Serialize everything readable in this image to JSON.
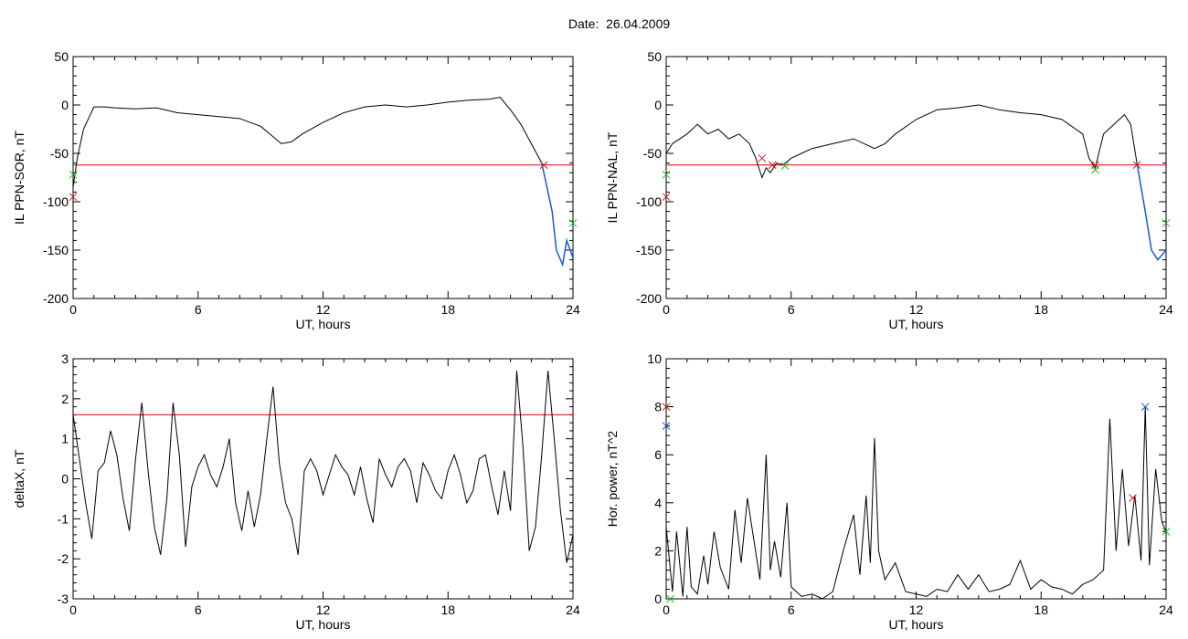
{
  "header": {
    "date_label": "Date:",
    "date_value": "26.04.2009"
  },
  "colors": {
    "trace": "#000000",
    "threshold": "#e00000",
    "active": "#1a5fd0",
    "marker_green": "#22bb22",
    "marker_red": "#d02020",
    "marker_blue": "#1a5fd0"
  },
  "chart_data": [
    {
      "id": "il-ppn-sor",
      "type": "line",
      "title": "",
      "xlabel": "UT, hours",
      "ylabel": "IL PPN-SOR, nT",
      "xlim": [
        0,
        24
      ],
      "ylim": [
        -200,
        50
      ],
      "xticks": [
        0,
        6,
        12,
        18,
        24
      ],
      "yticks": [
        50,
        0,
        -50,
        -100,
        -150,
        -200
      ],
      "threshold": -62,
      "series": [
        {
          "values_x": [
            0,
            0.2,
            0.5,
            1,
            1.5,
            2,
            3,
            4,
            5,
            6,
            7,
            8,
            9,
            10,
            10.5,
            11,
            12,
            13,
            14,
            15,
            16,
            17,
            18,
            19,
            20,
            20.5,
            21,
            21.5,
            22,
            22.5,
            22.8,
            23,
            23.2,
            23.5,
            23.7,
            24
          ],
          "values_y": [
            -85,
            -55,
            -25,
            -2,
            -2,
            -3,
            -4,
            -3,
            -8,
            -10,
            -12,
            -14,
            -22,
            -40,
            -38,
            -30,
            -18,
            -8,
            -2,
            0,
            -2,
            0,
            3,
            5,
            6,
            8,
            -5,
            -20,
            -40,
            -60,
            -90,
            -110,
            -150,
            -165,
            -140,
            -158
          ],
          "active_from": 22.5
        }
      ],
      "markers": [
        {
          "x": 0,
          "y": -72,
          "color": "green",
          "symbol": "x"
        },
        {
          "x": 0,
          "y": -95,
          "color": "red",
          "symbol": "x"
        },
        {
          "x": 22.6,
          "y": -62,
          "color": "red",
          "symbol": "x"
        },
        {
          "x": 24,
          "y": -122,
          "color": "green",
          "symbol": "x"
        }
      ]
    },
    {
      "id": "il-ppn-nal",
      "type": "line",
      "title": "",
      "xlabel": "UT, hours",
      "ylabel": "IL PPN-NAL, nT",
      "xlim": [
        0,
        24
      ],
      "ylim": [
        -200,
        50
      ],
      "xticks": [
        0,
        6,
        12,
        18,
        24
      ],
      "yticks": [
        50,
        0,
        -50,
        -100,
        -150,
        -200
      ],
      "threshold": -62,
      "series": [
        {
          "values_x": [
            0,
            0.3,
            1,
            1.5,
            2,
            2.5,
            3,
            3.5,
            4,
            4.3,
            4.6,
            4.8,
            5,
            5.3,
            5.6,
            6,
            6.5,
            7,
            8,
            9,
            10,
            10.5,
            11,
            12,
            13,
            14,
            15,
            16,
            17,
            18,
            19,
            20,
            20.3,
            20.6,
            21,
            21.5,
            22,
            22.3,
            22.6,
            23,
            23.3,
            23.6,
            24
          ],
          "values_y": [
            -50,
            -40,
            -30,
            -20,
            -30,
            -25,
            -35,
            -30,
            -40,
            -55,
            -75,
            -65,
            -70,
            -60,
            -62,
            -55,
            -50,
            -45,
            -40,
            -35,
            -45,
            -40,
            -30,
            -15,
            -5,
            -3,
            0,
            -5,
            -8,
            -10,
            -15,
            -30,
            -55,
            -65,
            -30,
            -20,
            -10,
            -20,
            -60,
            -110,
            -150,
            -160,
            -150
          ],
          "active_from": 22.6
        }
      ],
      "markers": [
        {
          "x": 0,
          "y": -72,
          "color": "green",
          "symbol": "x"
        },
        {
          "x": 0,
          "y": -95,
          "color": "red",
          "symbol": "x"
        },
        {
          "x": 4.6,
          "y": -55,
          "color": "red",
          "symbol": "x"
        },
        {
          "x": 5.1,
          "y": -62,
          "color": "red",
          "symbol": "x"
        },
        {
          "x": 5.7,
          "y": -63,
          "color": "green",
          "symbol": "x"
        },
        {
          "x": 20.6,
          "y": -62,
          "color": "red",
          "symbol": "x"
        },
        {
          "x": 20.6,
          "y": -67,
          "color": "green",
          "symbol": "x"
        },
        {
          "x": 22.6,
          "y": -62,
          "color": "red",
          "symbol": "x"
        },
        {
          "x": 24,
          "y": -122,
          "color": "green",
          "symbol": "x"
        }
      ]
    },
    {
      "id": "deltax",
      "type": "line",
      "title": "",
      "xlabel": "UT, hours",
      "ylabel": "deltaX, nT",
      "xlim": [
        0,
        24
      ],
      "ylim": [
        -3,
        3
      ],
      "xticks": [
        0,
        6,
        12,
        18,
        24
      ],
      "yticks": [
        3,
        2,
        1,
        0,
        -1,
        -2,
        -3
      ],
      "threshold": 1.6,
      "series": [
        {
          "values_x": [
            0,
            0.3,
            0.6,
            0.9,
            1.2,
            1.5,
            1.8,
            2.1,
            2.4,
            2.7,
            3,
            3.3,
            3.6,
            3.9,
            4.2,
            4.5,
            4.8,
            5.1,
            5.4,
            5.7,
            6,
            6.3,
            6.6,
            6.9,
            7.2,
            7.5,
            7.8,
            8.1,
            8.4,
            8.7,
            9,
            9.3,
            9.6,
            9.9,
            10.2,
            10.5,
            10.8,
            11.1,
            11.4,
            11.7,
            12,
            12.3,
            12.6,
            12.9,
            13.2,
            13.5,
            13.8,
            14.1,
            14.4,
            14.7,
            15,
            15.3,
            15.6,
            15.9,
            16.2,
            16.5,
            16.8,
            17.1,
            17.4,
            17.7,
            18,
            18.3,
            18.6,
            18.9,
            19.2,
            19.5,
            19.8,
            20.1,
            20.4,
            20.7,
            21,
            21.3,
            21.6,
            21.9,
            22.2,
            22.5,
            22.8,
            23.1,
            23.4,
            23.7,
            24
          ],
          "values_y": [
            1.6,
            0.5,
            -0.6,
            -1.5,
            0.2,
            0.4,
            1.2,
            0.6,
            -0.5,
            -1.3,
            0.5,
            1.9,
            0.2,
            -1.2,
            -1.9,
            -0.5,
            1.9,
            0.6,
            -1.7,
            -0.2,
            0.3,
            0.6,
            0.1,
            -0.2,
            0.3,
            1.0,
            -0.6,
            -1.3,
            -0.3,
            -1.2,
            -0.4,
            1.0,
            2.3,
            0.4,
            -0.6,
            -1.0,
            -1.9,
            0.2,
            0.5,
            0.2,
            -0.4,
            0.1,
            0.6,
            0.3,
            0.1,
            -0.4,
            0.3,
            -0.5,
            -1.1,
            0.5,
            0.1,
            -0.2,
            0.3,
            0.5,
            0.2,
            -0.6,
            0.4,
            0.1,
            -0.3,
            -0.5,
            0.2,
            0.6,
            0.1,
            -0.6,
            -0.3,
            0.5,
            0.6,
            -0.2,
            -0.9,
            0.2,
            -0.8,
            2.7,
            0.8,
            -1.8,
            -1.2,
            0.6,
            2.7,
            1.0,
            -0.8,
            -2.1,
            -1.4
          ]
        }
      ],
      "markers": []
    },
    {
      "id": "hor-power",
      "type": "line",
      "title": "",
      "xlabel": "UT, hours",
      "ylabel": "Hor. power, nT^2",
      "xlim": [
        0,
        24
      ],
      "ylim": [
        0,
        10
      ],
      "xticks": [
        0,
        6,
        12,
        18,
        24
      ],
      "yticks": [
        10,
        8,
        6,
        4,
        2,
        0
      ],
      "threshold": null,
      "series": [
        {
          "values_x": [
            0,
            0.3,
            0.5,
            0.8,
            1,
            1.2,
            1.5,
            1.8,
            2,
            2.3,
            2.6,
            3,
            3.3,
            3.6,
            3.9,
            4.2,
            4.5,
            4.8,
            5,
            5.2,
            5.5,
            5.8,
            6,
            6.5,
            7,
            7.5,
            8,
            8.5,
            9,
            9.3,
            9.6,
            9.8,
            10,
            10.2,
            10.5,
            11,
            11.5,
            12,
            12.5,
            13,
            13.5,
            14,
            14.5,
            15,
            15.5,
            16,
            16.5,
            17,
            17.5,
            18,
            18.5,
            19,
            19.5,
            20,
            20.5,
            21,
            21.3,
            21.6,
            21.9,
            22.2,
            22.5,
            22.8,
            23,
            23.2,
            23.5,
            23.8,
            24
          ],
          "values_y": [
            3.0,
            0.3,
            2.8,
            0.1,
            3.0,
            0.5,
            0.2,
            1.8,
            0.6,
            2.8,
            1.3,
            0.4,
            3.7,
            1.5,
            4.2,
            2.5,
            0.8,
            6.0,
            1.2,
            2.4,
            0.9,
            4.0,
            0.5,
            0.1,
            0.2,
            0.0,
            0.3,
            2.0,
            3.5,
            1.0,
            4.3,
            1.5,
            6.7,
            2.0,
            0.8,
            1.5,
            0.3,
            0.2,
            0.1,
            0.4,
            0.3,
            1.0,
            0.4,
            1.0,
            0.3,
            0.4,
            0.6,
            1.6,
            0.4,
            0.8,
            0.5,
            0.4,
            0.2,
            0.6,
            0.8,
            1.2,
            7.5,
            2.0,
            5.4,
            2.2,
            4.3,
            1.6,
            8.0,
            1.4,
            5.4,
            3.2,
            2.8
          ]
        }
      ],
      "markers": [
        {
          "x": 0,
          "y": 8.0,
          "color": "red",
          "symbol": "x"
        },
        {
          "x": 0,
          "y": 7.2,
          "color": "blue",
          "symbol": "x"
        },
        {
          "x": 0.2,
          "y": 0.0,
          "color": "green",
          "symbol": "x"
        },
        {
          "x": 22.4,
          "y": 4.2,
          "color": "red",
          "symbol": "x"
        },
        {
          "x": 23.0,
          "y": 8.0,
          "color": "blue",
          "symbol": "x"
        },
        {
          "x": 24,
          "y": 2.8,
          "color": "green",
          "symbol": "x"
        }
      ]
    }
  ]
}
